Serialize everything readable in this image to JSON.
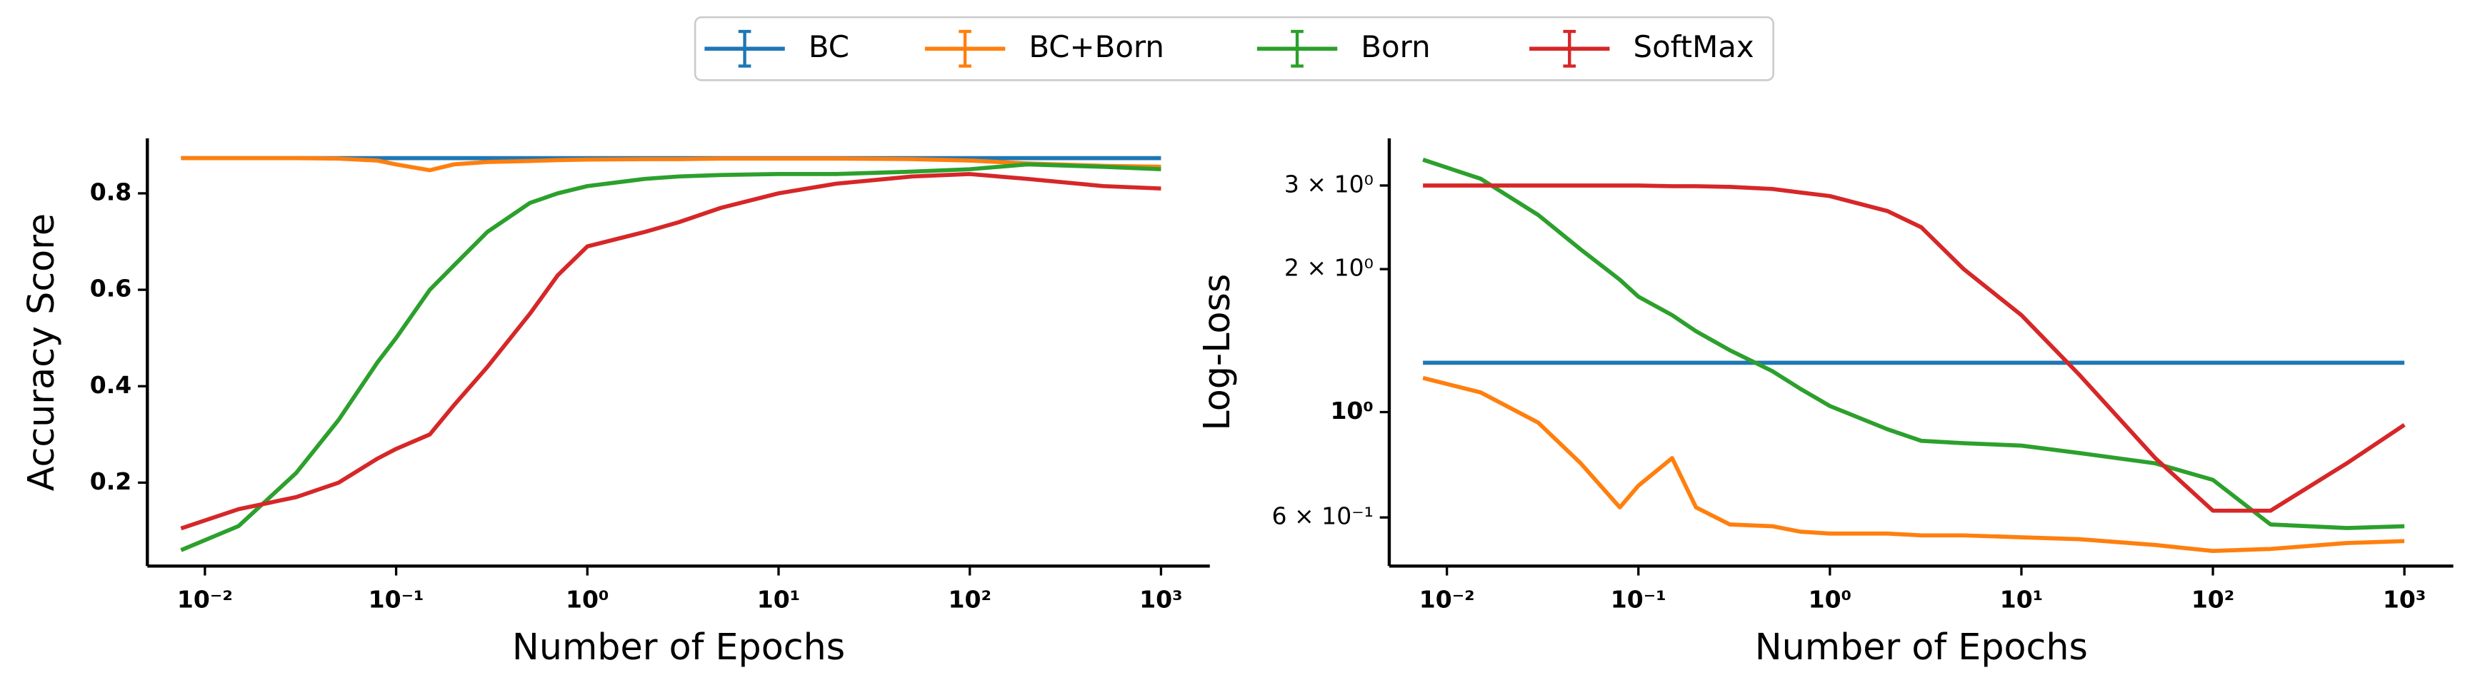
{
  "chart_data": [
    {
      "type": "line",
      "legend": "upper center",
      "xlabel": "Number of Epochs",
      "ylabel": "Accuracy Score",
      "xscale": "log",
      "xlim": [
        0.005,
        1800
      ],
      "xticks": [
        {
          "value": 0.01,
          "label": "10⁻²"
        },
        {
          "value": 0.1,
          "label": "10⁻¹"
        },
        {
          "value": 1,
          "label": "10⁰"
        },
        {
          "value": 10,
          "label": "10¹"
        },
        {
          "value": 100,
          "label": "10²"
        },
        {
          "value": 1000,
          "label": "10³"
        }
      ],
      "ylim": [
        0.027,
        0.914
      ],
      "yticks": [
        0.2,
        0.4,
        0.6,
        0.8
      ],
      "x": [
        0.0075,
        0.015,
        0.03,
        0.05,
        0.08,
        0.1,
        0.15,
        0.2,
        0.3,
        0.5,
        0.7,
        1,
        2,
        3,
        5,
        10,
        20,
        50,
        100,
        200,
        500,
        1000
      ],
      "series": [
        {
          "name": "BC",
          "color": "#1f77b4",
          "values": [
            0.873,
            0.873,
            0.873,
            0.873,
            0.873,
            0.873,
            0.873,
            0.873,
            0.873,
            0.873,
            0.873,
            0.873,
            0.873,
            0.873,
            0.873,
            0.873,
            0.873,
            0.873,
            0.873,
            0.873,
            0.873,
            0.873
          ]
        },
        {
          "name": "BC+Born",
          "color": "#ff7f0e",
          "values": [
            0.873,
            0.873,
            0.873,
            0.872,
            0.868,
            0.86,
            0.848,
            0.86,
            0.865,
            0.867,
            0.869,
            0.87,
            0.871,
            0.871,
            0.872,
            0.872,
            0.872,
            0.871,
            0.868,
            0.862,
            0.857,
            0.855
          ]
        },
        {
          "name": "Born",
          "color": "#2ca02c",
          "values": [
            0.06,
            0.11,
            0.22,
            0.33,
            0.45,
            0.5,
            0.6,
            0.65,
            0.72,
            0.78,
            0.8,
            0.815,
            0.83,
            0.835,
            0.838,
            0.84,
            0.84,
            0.845,
            0.85,
            0.86,
            0.855,
            0.85
          ]
        },
        {
          "name": "SoftMax",
          "color": "#d62728",
          "values": [
            0.105,
            0.145,
            0.17,
            0.2,
            0.25,
            0.27,
            0.3,
            0.36,
            0.44,
            0.55,
            0.63,
            0.69,
            0.72,
            0.74,
            0.77,
            0.8,
            0.82,
            0.835,
            0.84,
            0.83,
            0.815,
            0.81
          ]
        }
      ]
    },
    {
      "type": "line",
      "xlabel": "Number of Epochs",
      "ylabel": "Log-Loss",
      "xscale": "log",
      "yscale": "log",
      "xlim": [
        0.005,
        1800
      ],
      "xticks": [
        {
          "value": 0.01,
          "label": "10⁻²"
        },
        {
          "value": 0.1,
          "label": "10⁻¹"
        },
        {
          "value": 1,
          "label": "10⁰"
        },
        {
          "value": 10,
          "label": "10¹"
        },
        {
          "value": 100,
          "label": "10²"
        },
        {
          "value": 1000,
          "label": "10³"
        }
      ],
      "ylim": [
        0.474,
        3.77
      ],
      "yticks": [
        {
          "value": 0.6,
          "label": "6 × 10⁻¹"
        },
        {
          "value": 1,
          "label": "10⁰"
        },
        {
          "value": 2,
          "label": "2 × 10⁰"
        },
        {
          "value": 3,
          "label": "3 × 10⁰"
        }
      ],
      "x": [
        0.0075,
        0.015,
        0.03,
        0.05,
        0.08,
        0.1,
        0.15,
        0.2,
        0.3,
        0.5,
        0.7,
        1,
        2,
        3,
        5,
        10,
        20,
        50,
        100,
        200,
        500,
        1000
      ],
      "series": [
        {
          "name": "BC",
          "color": "#1f77b4",
          "values": [
            1.27,
            1.27,
            1.27,
            1.27,
            1.27,
            1.27,
            1.27,
            1.27,
            1.27,
            1.27,
            1.27,
            1.27,
            1.27,
            1.27,
            1.27,
            1.27,
            1.27,
            1.27,
            1.27,
            1.27,
            1.27,
            1.27
          ]
        },
        {
          "name": "BC+Born",
          "color": "#ff7f0e",
          "values": [
            1.18,
            1.1,
            0.95,
            0.78,
            0.63,
            0.7,
            0.8,
            0.63,
            0.58,
            0.575,
            0.56,
            0.555,
            0.555,
            0.55,
            0.55,
            0.545,
            0.54,
            0.525,
            0.51,
            0.515,
            0.53,
            0.535
          ]
        },
        {
          "name": "Born",
          "color": "#2ca02c",
          "values": [
            3.4,
            3.1,
            2.6,
            2.2,
            1.9,
            1.75,
            1.6,
            1.48,
            1.35,
            1.22,
            1.12,
            1.03,
            0.92,
            0.87,
            0.86,
            0.85,
            0.82,
            0.78,
            0.72,
            0.58,
            0.57,
            0.575
          ]
        },
        {
          "name": "SoftMax",
          "color": "#d62728",
          "values": [
            3.0,
            3.0,
            3.0,
            3.0,
            3.0,
            3.0,
            2.99,
            2.99,
            2.98,
            2.95,
            2.9,
            2.85,
            2.65,
            2.45,
            2.0,
            1.6,
            1.2,
            0.8,
            0.62,
            0.62,
            0.78,
            0.94
          ]
        }
      ]
    }
  ]
}
